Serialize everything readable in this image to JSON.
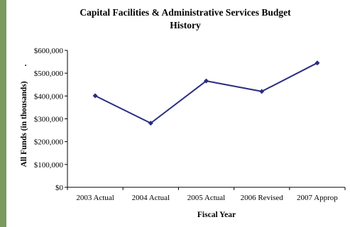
{
  "chart_data": {
    "type": "line",
    "title_lines": [
      "Capital Facilities & Administrative Services Budget",
      "History"
    ],
    "xlabel": "Fiscal Year",
    "ylabel": "All Funds (in thousands)",
    "ylabel_mark": ".",
    "categories": [
      "2003 Actual",
      "2004 Actual",
      "2005 Actual",
      "2006 Revised",
      "2007 Approp"
    ],
    "series": [
      {
        "values": [
          401000,
          281000,
          466000,
          420000,
          545000
        ]
      }
    ],
    "y_ticks": [
      0,
      100000,
      200000,
      300000,
      400000,
      500000,
      600000
    ],
    "y_tick_labels": [
      "$0",
      "$100,000",
      "$200,000",
      "$300,000",
      "$400,000",
      "$500,000",
      "$600,000"
    ],
    "ylim": [
      0,
      600000
    ],
    "grid": false,
    "legend": "none",
    "line_color": "#2a2d80",
    "accent_bar_color": "#7a9a5e"
  }
}
